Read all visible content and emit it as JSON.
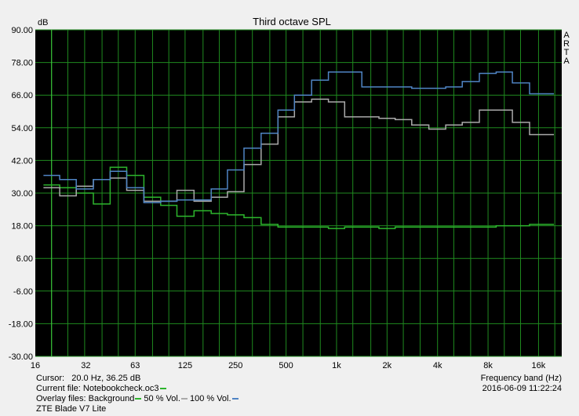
{
  "chart_data": {
    "type": "line",
    "title": "Third octave SPL",
    "ylabel": "dB",
    "xlabel": "Frequency band (Hz)",
    "side_text": [
      "A",
      "R",
      "T",
      "A"
    ],
    "ylim": [
      -30,
      90
    ],
    "yticks": [
      "90.00",
      "78.00",
      "66.00",
      "54.00",
      "42.00",
      "30.00",
      "18.00",
      "6.00",
      "-6.00",
      "-18.00",
      "-30.00"
    ],
    "xticks": [
      {
        "label": "16",
        "f": 16
      },
      {
        "label": "32",
        "f": 32
      },
      {
        "label": "63",
        "f": 63
      },
      {
        "label": "125",
        "f": 125
      },
      {
        "label": "250",
        "f": 250
      },
      {
        "label": "500",
        "f": 500
      },
      {
        "label": "1k",
        "f": 1000
      },
      {
        "label": "2k",
        "f": 2000
      },
      {
        "label": "4k",
        "f": 4000
      },
      {
        "label": "8k",
        "f": 8000
      },
      {
        "label": "16k",
        "f": 16000
      }
    ],
    "bands": [
      20,
      25,
      31.5,
      40,
      50,
      63,
      80,
      100,
      125,
      160,
      200,
      250,
      315,
      400,
      500,
      630,
      800,
      1000,
      1250,
      1600,
      2000,
      2500,
      3150,
      4000,
      5000,
      6300,
      8000,
      10000,
      12500,
      16000,
      20000
    ],
    "series": [
      {
        "name": "Background",
        "color": "#2db52d",
        "values": [
          33,
          32,
          30,
          26,
          39.5,
          36.5,
          28.5,
          25.5,
          21.5,
          23.5,
          22.5,
          22,
          21,
          18.5,
          17.5,
          17.5,
          17.5,
          17,
          17.5,
          17.5,
          17,
          17.5,
          17.5,
          17.5,
          17.5,
          17.5,
          17.5,
          18,
          18,
          18.5,
          18.5
        ]
      },
      {
        "name": "50 % Vol.",
        "color": "#aaaaaa",
        "values": [
          32,
          29,
          32.5,
          35,
          35.5,
          31,
          27,
          27,
          31,
          27,
          28.5,
          30.5,
          40.5,
          48,
          58,
          63.5,
          64.5,
          63.5,
          58,
          58,
          57.5,
          57,
          55,
          53.5,
          55,
          56,
          60.5,
          60.5,
          56,
          51.5,
          51.5
        ]
      },
      {
        "name": "100 % Vol.",
        "color": "#4f84c4",
        "values": [
          36.5,
          35,
          31.5,
          35,
          38,
          32,
          26.5,
          27,
          27.5,
          27.5,
          31.5,
          38.5,
          46.5,
          52,
          60.5,
          66,
          71.5,
          74.5,
          74.5,
          69,
          69,
          69,
          68.5,
          68.5,
          69,
          71,
          74,
          74.5,
          70.5,
          66.5,
          66.5
        ]
      }
    ]
  },
  "footer": {
    "cursor_label": "Cursor:",
    "cursor_value": "20.0 Hz, 36.25 dB",
    "current_file": "Current file: Notebookcheck.oc3",
    "overlay_prefix": "Overlay files: Background",
    "overlay_50": "50 % Vol.",
    "overlay_100": "100 % Vol.",
    "device": "ZTE Blade V7 Lite",
    "datetime": "2016-06-09  11:22:24"
  }
}
